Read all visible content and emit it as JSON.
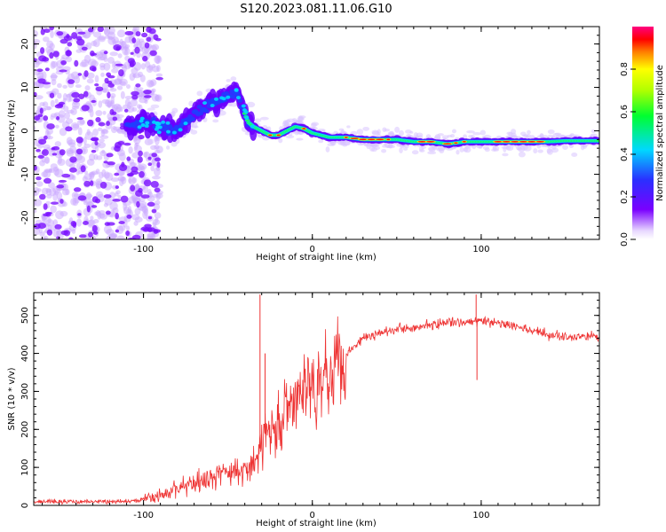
{
  "title": "S120.2023.081.11.06.G10",
  "chart_data": [
    {
      "type": "heatmap",
      "xlabel": "Height of straight line (km)",
      "ylabel": "Frequency (Hz)",
      "xlim": [
        -165,
        170
      ],
      "ylim": [
        -25,
        24
      ],
      "x_ticks": [
        -100,
        0,
        100
      ],
      "y_ticks": [
        -20,
        -10,
        0,
        10,
        20
      ],
      "ridge": {
        "x": [
          -110,
          -100,
          -90,
          -80,
          -72,
          -65,
          -60,
          -55,
          -50,
          -45,
          -42,
          -38,
          -35,
          -30,
          -25,
          -20,
          -15,
          -10,
          -5,
          0,
          5,
          10,
          15,
          20,
          30,
          40,
          50,
          60,
          70,
          80,
          85,
          90,
          95,
          100,
          110,
          120,
          130,
          140,
          150,
          160,
          170
        ],
        "y": [
          1,
          2,
          1,
          0,
          3,
          5,
          6,
          7,
          8,
          9,
          6,
          2,
          1,
          0,
          -1,
          -1,
          0,
          1,
          0.5,
          -0.5,
          -1,
          -1.5,
          -1.5,
          -1.5,
          -2,
          -2,
          -2,
          -2.5,
          -2.5,
          -3,
          -2.8,
          -2.5,
          -2.5,
          -2.5,
          -2.5,
          -2.5,
          -2.5,
          -2.5,
          -2.3,
          -2.3,
          -2.3
        ]
      },
      "colorbar": {
        "label": "Normalized spectral amplitude",
        "range": [
          0,
          1
        ],
        "ticks": [
          0.0,
          0.2,
          0.4,
          0.6,
          0.8
        ],
        "tick_labels": [
          "0.0",
          "0.2",
          "0.4",
          "0.6",
          "0.8"
        ]
      }
    },
    {
      "type": "line",
      "xlabel": "Height of straight line (km)",
      "ylabel": "SNR (10 * v/v)",
      "xlim": [
        -165,
        170
      ],
      "ylim": [
        0,
        560
      ],
      "x_ticks": [
        -100,
        0,
        100
      ],
      "y_ticks": [
        0,
        100,
        200,
        300,
        400,
        500
      ],
      "color": "#ee3333",
      "series": [
        {
          "x": [
            -165,
            -150,
            -130,
            -110,
            -100,
            -90,
            -85,
            -80,
            -75,
            -70,
            -65,
            -60,
            -55,
            -50,
            -45,
            -40,
            -35,
            -32,
            -30,
            -25,
            -20,
            -15,
            -10,
            -5,
            0,
            5,
            10,
            15,
            20,
            25,
            30,
            40,
            50,
            60,
            70,
            80,
            90,
            95,
            100,
            110,
            120,
            130,
            140,
            150,
            160,
            170
          ],
          "y": [
            10,
            10,
            10,
            10,
            15,
            25,
            35,
            45,
            55,
            60,
            65,
            75,
            80,
            85,
            90,
            100,
            110,
            120,
            180,
            200,
            220,
            250,
            270,
            300,
            320,
            340,
            360,
            380,
            400,
            420,
            440,
            455,
            465,
            470,
            475,
            480,
            480,
            485,
            485,
            480,
            470,
            460,
            450,
            445,
            445,
            445
          ],
          "spikes": [
            {
              "x": -31,
              "y": 555
            },
            {
              "x": -28,
              "y": 400
            },
            {
              "x": 97,
              "y": 555
            },
            {
              "x": 97.5,
              "y": 330
            }
          ]
        }
      ]
    }
  ]
}
